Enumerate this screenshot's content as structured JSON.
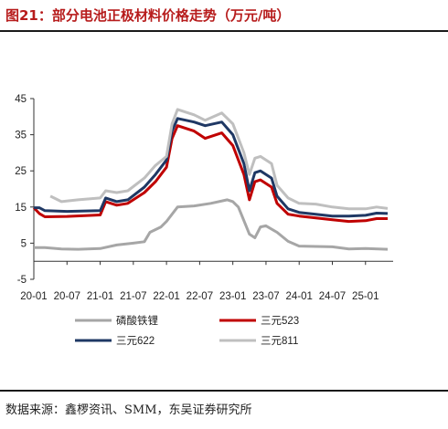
{
  "figure": {
    "title": "图21：部分电池正极材料价格走势（万元/吨）",
    "source": "数据来源：鑫椤资讯、SMM，东吴证券研究所"
  },
  "chart_data": {
    "type": "line",
    "title": "",
    "xlabel": "",
    "ylabel": "",
    "ylim": [
      -5,
      45
    ],
    "yticks": [
      -5,
      5,
      15,
      25,
      35,
      45
    ],
    "xlim": [
      "2020-01",
      "2025-06"
    ],
    "xticks": [
      "2020-01",
      "2020-07",
      "2021-01",
      "2021-07",
      "2022-01",
      "2022-07",
      "2023-01",
      "2023-07",
      "2024-01",
      "2024-07",
      "2025-01"
    ],
    "xtick_labels": [
      "20-01",
      "20-07",
      "21-01",
      "21-07",
      "22-01",
      "22-07",
      "23-01",
      "23-07",
      "24-01",
      "24-07",
      "25-01"
    ],
    "grid": false,
    "legend_position": "bottom",
    "series": [
      {
        "name": "磷酸铁锂",
        "color": "#a6a6a6",
        "points": [
          [
            "2020-01",
            3.8
          ],
          [
            "2020-03",
            3.8
          ],
          [
            "2020-06",
            3.4
          ],
          [
            "2020-09",
            3.3
          ],
          [
            "2021-01",
            3.5
          ],
          [
            "2021-04",
            4.5
          ],
          [
            "2021-07",
            5.0
          ],
          [
            "2021-09",
            5.4
          ],
          [
            "2021-10",
            8.0
          ],
          [
            "2021-12",
            9.5
          ],
          [
            "2022-01",
            11.0
          ],
          [
            "2022-03",
            15.0
          ],
          [
            "2022-06",
            15.3
          ],
          [
            "2022-09",
            16.0
          ],
          [
            "2022-12",
            17.0
          ],
          [
            "2023-01",
            16.5
          ],
          [
            "2023-02",
            15.0
          ],
          [
            "2023-04",
            7.5
          ],
          [
            "2023-05",
            6.5
          ],
          [
            "2023-06",
            9.5
          ],
          [
            "2023-07",
            9.8
          ],
          [
            "2023-09",
            8.0
          ],
          [
            "2023-11",
            5.5
          ],
          [
            "2024-01",
            4.2
          ],
          [
            "2024-07",
            4.0
          ],
          [
            "2024-10",
            3.4
          ],
          [
            "2025-01",
            3.5
          ],
          [
            "2025-05",
            3.3
          ]
        ]
      },
      {
        "name": "三元523",
        "color": "#c00000",
        "points": [
          [
            "2020-01",
            14.8
          ],
          [
            "2020-02",
            13.2
          ],
          [
            "2020-03",
            12.3
          ],
          [
            "2020-07",
            12.4
          ],
          [
            "2021-01",
            12.8
          ],
          [
            "2021-02",
            16.5
          ],
          [
            "2021-04",
            15.5
          ],
          [
            "2021-06",
            16.0
          ],
          [
            "2021-09",
            19.0
          ],
          [
            "2021-11",
            22.0
          ],
          [
            "2022-01",
            26.0
          ],
          [
            "2022-02",
            34.0
          ],
          [
            "2022-03",
            37.5
          ],
          [
            "2022-06",
            36.0
          ],
          [
            "2022-08",
            34.0
          ],
          [
            "2022-11",
            35.5
          ],
          [
            "2023-01",
            32.0
          ],
          [
            "2023-03",
            24.0
          ],
          [
            "2023-04",
            17.0
          ],
          [
            "2023-05",
            22.0
          ],
          [
            "2023-06",
            22.5
          ],
          [
            "2023-08",
            20.5
          ],
          [
            "2023-09",
            16.0
          ],
          [
            "2023-11",
            13.0
          ],
          [
            "2024-01",
            12.5
          ],
          [
            "2024-04",
            12.0
          ],
          [
            "2024-07",
            11.5
          ],
          [
            "2024-10",
            11.0
          ],
          [
            "2025-01",
            11.2
          ],
          [
            "2025-03",
            11.8
          ],
          [
            "2025-05",
            11.8
          ]
        ]
      },
      {
        "name": "三元622",
        "color": "#1f3864",
        "points": [
          [
            "2020-01",
            14.8
          ],
          [
            "2020-02",
            14.8
          ],
          [
            "2020-03",
            14.0
          ],
          [
            "2020-07",
            13.8
          ],
          [
            "2021-01",
            14.0
          ],
          [
            "2021-02",
            17.5
          ],
          [
            "2021-04",
            16.5
          ],
          [
            "2021-06",
            17.0
          ],
          [
            "2021-09",
            20.5
          ],
          [
            "2021-11",
            24.0
          ],
          [
            "2022-01",
            28.0
          ],
          [
            "2022-02",
            36.0
          ],
          [
            "2022-03",
            39.5
          ],
          [
            "2022-06",
            38.5
          ],
          [
            "2022-08",
            37.5
          ],
          [
            "2022-11",
            38.5
          ],
          [
            "2023-01",
            35.0
          ],
          [
            "2023-03",
            27.0
          ],
          [
            "2023-04",
            19.5
          ],
          [
            "2023-05",
            24.5
          ],
          [
            "2023-06",
            25.0
          ],
          [
            "2023-08",
            23.0
          ],
          [
            "2023-09",
            18.0
          ],
          [
            "2023-11",
            14.5
          ],
          [
            "2024-01",
            13.5
          ],
          [
            "2024-04",
            13.0
          ],
          [
            "2024-07",
            12.5
          ],
          [
            "2024-10",
            12.5
          ],
          [
            "2025-01",
            12.7
          ],
          [
            "2025-03",
            13.3
          ],
          [
            "2025-05",
            13.2
          ]
        ]
      },
      {
        "name": "三元811",
        "color": "#bfbfbf",
        "points": [
          [
            "2020-04",
            18.0
          ],
          [
            "2020-06",
            16.5
          ],
          [
            "2020-09",
            17.0
          ],
          [
            "2021-01",
            17.5
          ],
          [
            "2021-02",
            19.5
          ],
          [
            "2021-04",
            19.0
          ],
          [
            "2021-06",
            19.5
          ],
          [
            "2021-09",
            23.0
          ],
          [
            "2021-11",
            26.5
          ],
          [
            "2022-01",
            29.0
          ],
          [
            "2022-02",
            38.0
          ],
          [
            "2022-03",
            42.0
          ],
          [
            "2022-06",
            40.5
          ],
          [
            "2022-08",
            39.0
          ],
          [
            "2022-11",
            41.0
          ],
          [
            "2023-01",
            38.0
          ],
          [
            "2023-03",
            30.0
          ],
          [
            "2023-04",
            24.0
          ],
          [
            "2023-05",
            28.5
          ],
          [
            "2023-06",
            29.0
          ],
          [
            "2023-08",
            27.0
          ],
          [
            "2023-09",
            21.0
          ],
          [
            "2023-11",
            17.5
          ],
          [
            "2024-01",
            16.0
          ],
          [
            "2024-04",
            15.8
          ],
          [
            "2024-07",
            15.0
          ],
          [
            "2024-10",
            14.5
          ],
          [
            "2025-01",
            14.5
          ],
          [
            "2025-03",
            15.0
          ],
          [
            "2025-05",
            14.6
          ]
        ]
      }
    ]
  }
}
